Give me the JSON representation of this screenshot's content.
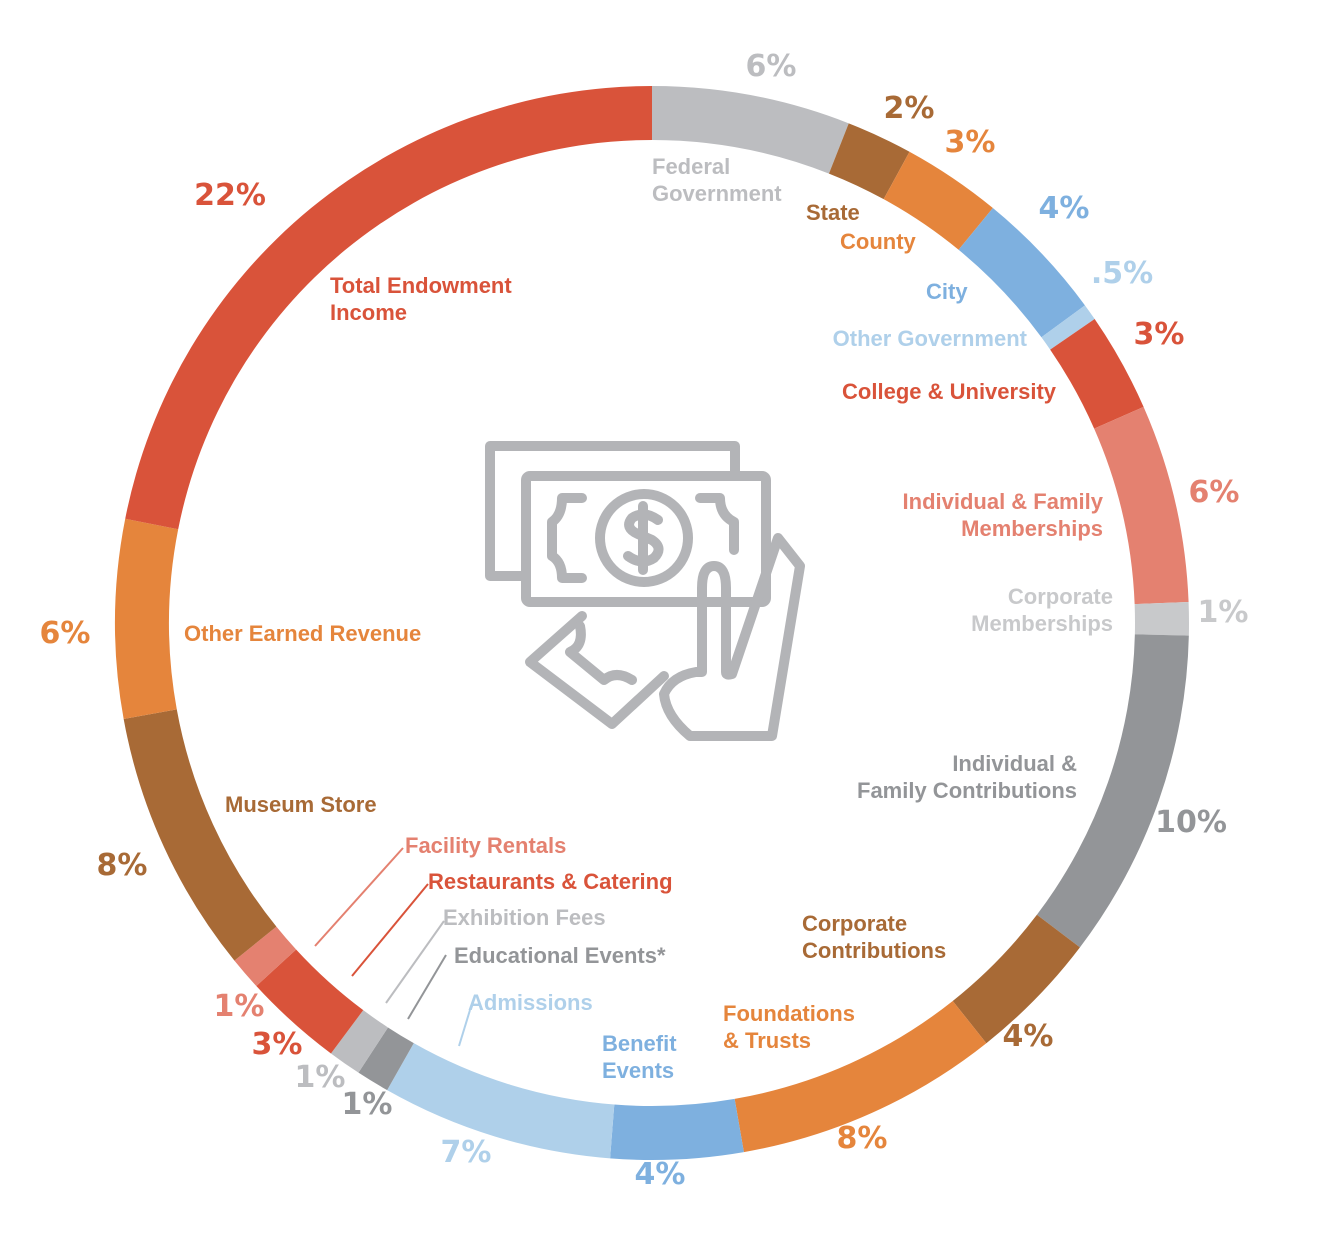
{
  "chart_data": {
    "type": "pie",
    "variant": "donut",
    "center_icon": "cash-in-hand-icon",
    "slices": [
      {
        "label": [
          "Federal",
          "Government"
        ],
        "value_label": "6%",
        "value": 6,
        "color": "#bcbdc0"
      },
      {
        "label": [
          "State"
        ],
        "value_label": "2%",
        "value": 2,
        "color": "#a86a36"
      },
      {
        "label": [
          "County"
        ],
        "value_label": "3%",
        "value": 3,
        "color": "#e5853c"
      },
      {
        "label": [
          "City"
        ],
        "value_label": "4%",
        "value": 4,
        "color": "#7eb0df"
      },
      {
        "label": [
          "Other Government"
        ],
        "value_label": ".5%",
        "value": 0.5,
        "color": "#afd0ea"
      },
      {
        "label": [
          "College & University"
        ],
        "value_label": "3%",
        "value": 3,
        "color": "#d9533a"
      },
      {
        "label": [
          "Individual & Family",
          "Memberships"
        ],
        "value_label": "6%",
        "value": 6,
        "color": "#e48170"
      },
      {
        "label": [
          "Corporate",
          "Memberships"
        ],
        "value_label": "1%",
        "value": 1,
        "color": "#c8c9cb"
      },
      {
        "label": [
          "Individual &",
          "Family Contributions"
        ],
        "value_label": "10%",
        "value": 10,
        "color": "#939598"
      },
      {
        "label": [
          "Corporate",
          "Contributions"
        ],
        "value_label": "4%",
        "value": 4,
        "color": "#a86a36"
      },
      {
        "label": [
          "Foundations",
          "& Trusts"
        ],
        "value_label": "8%",
        "value": 8,
        "color": "#e5853c"
      },
      {
        "label": [
          "Benefit",
          "Events"
        ],
        "value_label": "4%",
        "value": 4,
        "color": "#7eb0df"
      },
      {
        "label": [
          "Admissions"
        ],
        "value_label": "7%",
        "value": 7,
        "color": "#afd0ea"
      },
      {
        "label": [
          "Educational Events*"
        ],
        "value_label": "1%",
        "value": 1,
        "color": "#939598"
      },
      {
        "label": [
          "Exhibition Fees"
        ],
        "value_label": "1%",
        "value": 1,
        "color": "#bcbdc0"
      },
      {
        "label": [
          "Restaurants & Catering"
        ],
        "value_label": "3%",
        "value": 3,
        "color": "#d9533a"
      },
      {
        "label": [
          "Facility Rentals"
        ],
        "value_label": "1%",
        "value": 1,
        "color": "#e48170"
      },
      {
        "label": [
          "Museum Store"
        ],
        "value_label": "8%",
        "value": 8,
        "color": "#a86a36"
      },
      {
        "label": [
          "Other Earned Revenue"
        ],
        "value_label": "6%",
        "value": 6,
        "color": "#e5853c"
      },
      {
        "label": [
          "Total Endowment",
          "Income"
        ],
        "value_label": "22%",
        "value": 22,
        "color": "#d9533a"
      }
    ]
  }
}
